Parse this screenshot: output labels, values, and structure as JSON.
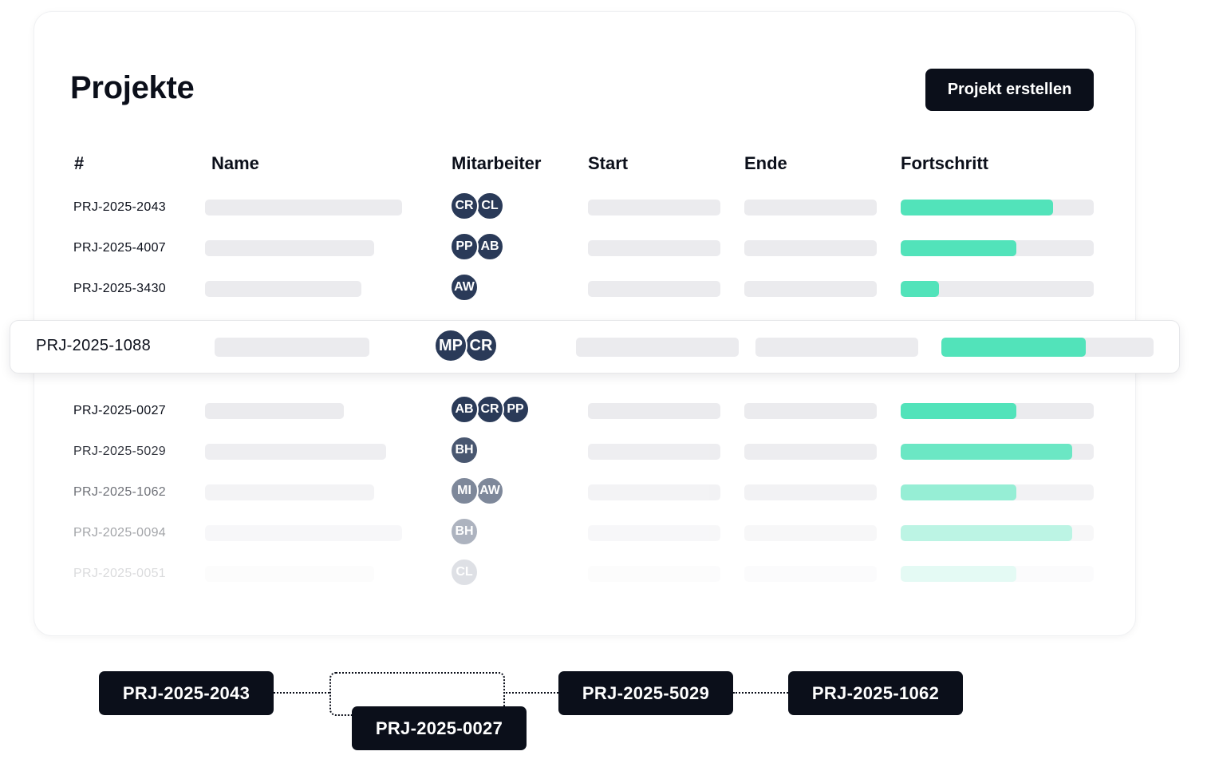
{
  "title": "Projekte",
  "create_button": "Projekt erstellen",
  "columns": [
    "#",
    "Name",
    "Mitarbeiter",
    "Start",
    "Ende",
    "Fortschritt"
  ],
  "colors": {
    "accent": "#52e3ba",
    "dark": "#0b0f1a",
    "avatar": "#2a3a58",
    "placeholder": "#ebebee"
  },
  "rows": [
    {
      "id": "PRJ-2025-2043",
      "members": [
        "CR",
        "CL"
      ],
      "progress": 0.79,
      "opacity": 1
    },
    {
      "id": "PRJ-2025-4007",
      "members": [
        "PP",
        "AB"
      ],
      "progress": 0.6,
      "opacity": 1
    },
    {
      "id": "PRJ-2025-3430",
      "members": [
        "AW"
      ],
      "progress": 0.2,
      "opacity": 1
    },
    {
      "id": "PRJ-2025-0027",
      "members": [
        "AB",
        "CR",
        "PP"
      ],
      "progress": 0.6,
      "opacity": 1
    },
    {
      "id": "PRJ-2025-5029",
      "members": [
        "BH"
      ],
      "progress": 0.89,
      "opacity": 0.85
    },
    {
      "id": "PRJ-2025-1062",
      "members": [
        "MI",
        "AW"
      ],
      "progress": 0.6,
      "opacity": 0.6
    },
    {
      "id": "PRJ-2025-0094",
      "members": [
        "BH"
      ],
      "progress": 0.89,
      "opacity": 0.38
    },
    {
      "id": "PRJ-2025-0051",
      "members": [
        "CL"
      ],
      "progress": 0.6,
      "opacity": 0.15
    }
  ],
  "highlighted": {
    "id": "PRJ-2025-1088",
    "members": [
      "MP",
      "CR"
    ],
    "progress": 0.68
  },
  "flow": [
    "PRJ-2025-2043",
    "PRJ-2025-0027",
    "PRJ-2025-5029",
    "PRJ-2025-1062"
  ]
}
